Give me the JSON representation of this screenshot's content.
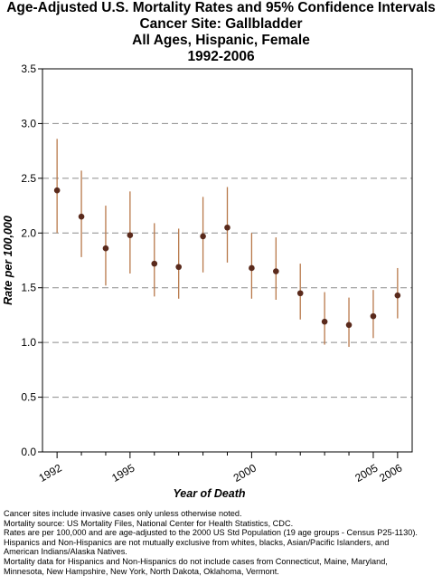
{
  "chart_data": {
    "type": "scatter",
    "title_lines": [
      "Age-Adjusted U.S. Mortality Rates and 95% Confidence Intervals",
      "Cancer Site: Gallbladder",
      "All Ages, Hispanic, Female",
      "1992-2006"
    ],
    "xlabel": "Year of Death",
    "ylabel": "Rate per 100,000",
    "x_ticks": [
      1992,
      1995,
      2000,
      2005,
      2006
    ],
    "x_tick_labels": [
      "1992",
      "1995",
      "2000",
      "2005",
      "2006"
    ],
    "xlim": [
      1991.4,
      2006.6
    ],
    "ylim": [
      0,
      3.5
    ],
    "y_ticks": [
      0.0,
      0.5,
      1.0,
      1.5,
      2.0,
      2.5,
      3.0,
      3.5
    ],
    "y_tick_labels": [
      "0.0",
      "0.5",
      "1.0",
      "1.5",
      "2.0",
      "2.5",
      "3.0",
      "3.5"
    ],
    "grid": "horizontal-dashed",
    "marker_color": "#5a2a1c",
    "ci_color": "#b8784a",
    "points": [
      {
        "x": 1992,
        "y": 2.39,
        "lower": 2.0,
        "upper": 2.86
      },
      {
        "x": 1993,
        "y": 2.15,
        "lower": 1.78,
        "upper": 2.57
      },
      {
        "x": 1994,
        "y": 1.86,
        "lower": 1.52,
        "upper": 2.25
      },
      {
        "x": 1995,
        "y": 1.98,
        "lower": 1.63,
        "upper": 2.38
      },
      {
        "x": 1996,
        "y": 1.72,
        "lower": 1.42,
        "upper": 2.09
      },
      {
        "x": 1997,
        "y": 1.69,
        "lower": 1.4,
        "upper": 2.04
      },
      {
        "x": 1998,
        "y": 1.97,
        "lower": 1.64,
        "upper": 2.33
      },
      {
        "x": 1999,
        "y": 2.05,
        "lower": 1.73,
        "upper": 2.42
      },
      {
        "x": 2000,
        "y": 1.68,
        "lower": 1.4,
        "upper": 2.0
      },
      {
        "x": 2001,
        "y": 1.65,
        "lower": 1.39,
        "upper": 1.96
      },
      {
        "x": 2002,
        "y": 1.45,
        "lower": 1.21,
        "upper": 1.72
      },
      {
        "x": 2003,
        "y": 1.19,
        "lower": 0.98,
        "upper": 1.46
      },
      {
        "x": 2004,
        "y": 1.16,
        "lower": 0.96,
        "upper": 1.41
      },
      {
        "x": 2005,
        "y": 1.24,
        "lower": 1.04,
        "upper": 1.48
      },
      {
        "x": 2006,
        "y": 1.43,
        "lower": 1.22,
        "upper": 1.68
      }
    ]
  },
  "notes": [
    "Cancer sites include invasive cases only unless otherwise noted.",
    "Mortality source: US Mortality Files, National Center for Health Statistics, CDC.",
    "Rates are per 100,000 and are age-adjusted to the 2000 US Std Population (19 age groups - Census P25-1130).",
    "Hispanics and Non-Hispanics are not mutually exclusive from whites, blacks, Asian/Pacific Islanders, and",
    "American Indians/Alaska Natives.",
    "Mortality data for Hispanics and Non-Hispanics do not include cases from Connecticut, Maine, Maryland,",
    "Minnesota, New Hampshire, New York, North Dakota, Oklahoma, Vermont."
  ]
}
